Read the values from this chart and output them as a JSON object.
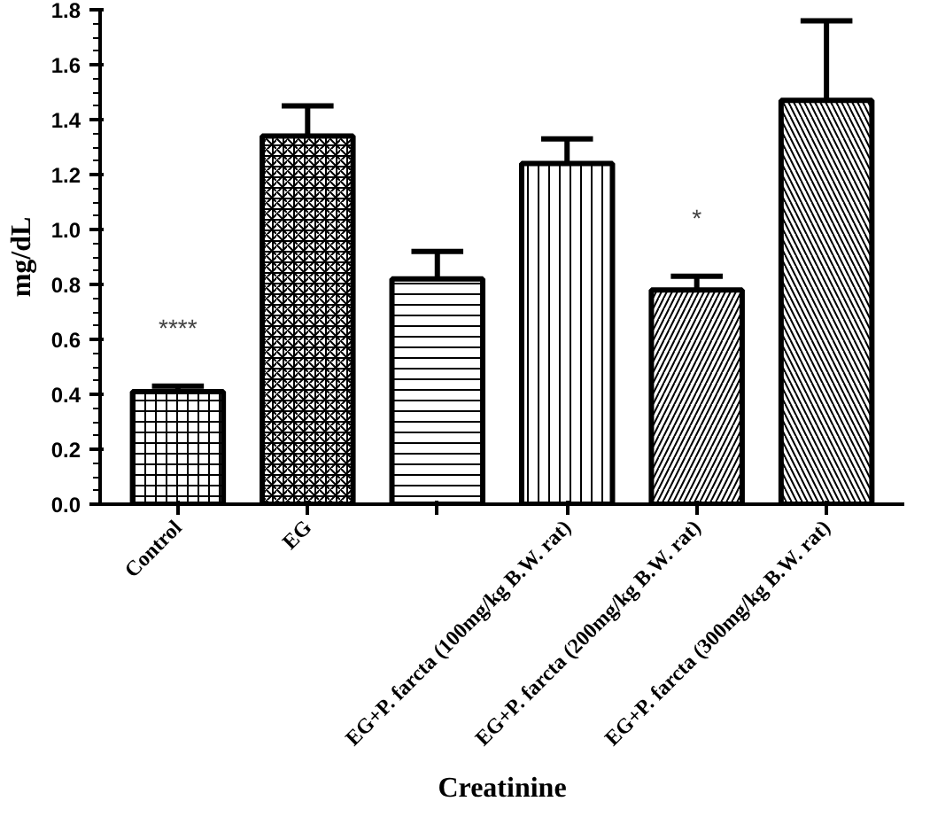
{
  "chart_data": {
    "type": "bar",
    "xlabel": "Creatinine",
    "ylabel": "mg/dL",
    "categories": [
      "Control",
      "EG",
      null,
      "EG+P. farcta (100mg/kg B.W. rat)",
      "EG+P. farcta (200mg/kg B.W. rat)",
      "EG+P. farcta (300mg/kg B.W. rat)"
    ],
    "values": [
      0.41,
      1.34,
      0.82,
      1.24,
      0.78,
      1.47
    ],
    "errors": [
      [
        0.41,
        0.43
      ],
      [
        1.34,
        1.45
      ],
      [
        0.82,
        0.92
      ],
      [
        1.24,
        1.33
      ],
      [
        0.78,
        0.83
      ],
      [
        1.47,
        1.76
      ]
    ],
    "color": "#ffffff",
    "ylim": [
      0,
      1.8
    ],
    "yticks": [
      {
        "value": 0,
        "label": "0.0"
      },
      {
        "value": 0.2,
        "label": "0.2"
      },
      {
        "value": 0.4,
        "label": "0.4"
      },
      {
        "value": 0.6,
        "label": "0.6"
      },
      {
        "value": 0.8,
        "label": "0.8"
      },
      {
        "value": 1,
        "label": "1.0"
      },
      {
        "value": 1.2,
        "label": "1.2"
      },
      {
        "value": 1.4,
        "label": "1.4"
      },
      {
        "value": 1.6,
        "label": "1.6"
      },
      {
        "value": 1.8,
        "label": "1.8"
      }
    ],
    "annotations": [
      {
        "text": "****",
        "x": "Control",
        "y": 0.41
      },
      {
        "text": "*",
        "x": "EG+P. farcta (200mg/kg B.W. rat)",
        "y": 0.78
      }
    ]
  }
}
